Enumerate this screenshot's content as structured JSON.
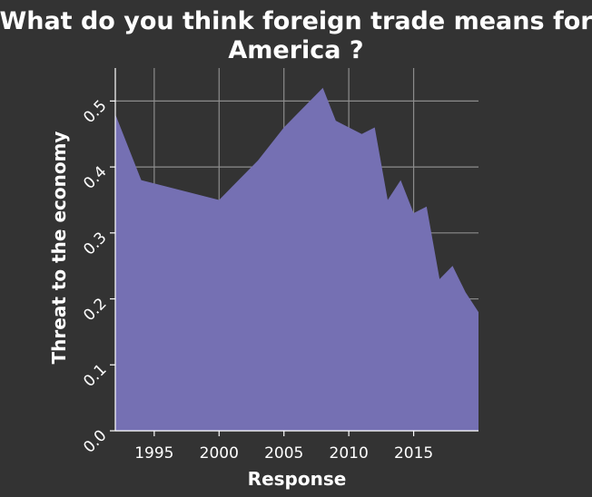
{
  "chart_data": {
    "type": "area",
    "title": "What do you think foreign trade means for America ?",
    "title_lines": [
      "What do you think foreign trade means for",
      "America ?"
    ],
    "xlabel": "Response",
    "ylabel": "Threat to the economy",
    "x_ticks": [
      1995,
      2000,
      2005,
      2010,
      2015
    ],
    "y_ticks": [
      0.0,
      0.1,
      0.2,
      0.3,
      0.4,
      0.5
    ],
    "y_tick_labels": [
      "0.0",
      "0.1",
      "0.2",
      "0.3",
      "0.4",
      "0.5"
    ],
    "xlim": [
      1992,
      2020
    ],
    "ylim": [
      0,
      0.55
    ],
    "grid": true,
    "series": [
      {
        "x": [
          1992,
          1994,
          2000,
          2003,
          2005,
          2008,
          2009,
          2011,
          2012,
          2013,
          2014,
          2015,
          2016,
          2017,
          2018,
          2019,
          2020
        ],
        "values": [
          0.48,
          0.38,
          0.35,
          0.41,
          0.46,
          0.52,
          0.47,
          0.45,
          0.46,
          0.35,
          0.38,
          0.33,
          0.34,
          0.23,
          0.25,
          0.21,
          0.18
        ]
      }
    ],
    "colors": {
      "background": "#333333",
      "fill": "#7570b3",
      "grid": "#8c8c8c",
      "text": "#ffffff"
    }
  }
}
